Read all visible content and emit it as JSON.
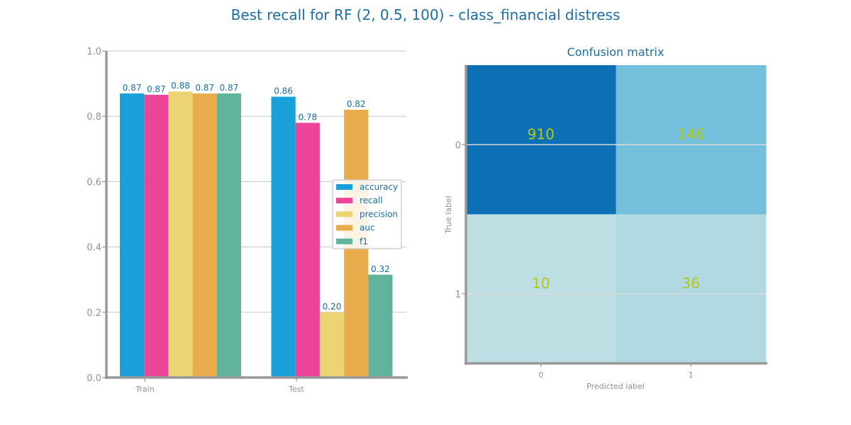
{
  "title": "Best recall for RF (2, 0.5, 100) - class_financial distress",
  "chart_data": [
    {
      "type": "bar",
      "categories": [
        "Train",
        "Test"
      ],
      "series": [
        {
          "name": "accuracy",
          "values": [
            0.87,
            0.86
          ],
          "color": "#1aa0d8"
        },
        {
          "name": "recall",
          "values": [
            0.866,
            0.78
          ],
          "color": "#ea4598"
        },
        {
          "name": "precision",
          "values": [
            0.876,
            0.2
          ],
          "color": "#ecd474"
        },
        {
          "name": "auc",
          "values": [
            0.87,
            0.82
          ],
          "color": "#e8ac4c"
        },
        {
          "name": "f1",
          "values": [
            0.87,
            0.315
          ],
          "color": "#62b39e"
        }
      ],
      "value_labels": [
        [
          "0.87",
          "0.87",
          "0.88",
          "0.87",
          "0.87"
        ],
        [
          "0.86",
          "0.78",
          "0.20",
          "0.82",
          "0.32"
        ]
      ],
      "ylim": [
        0,
        1
      ],
      "yticks": [
        "0.0",
        "0.2",
        "0.4",
        "0.6",
        "0.8",
        "1.0"
      ],
      "grid": true,
      "legend": "center-right"
    },
    {
      "type": "heatmap",
      "title": "Confusion matrix",
      "xlabel": "Predicted label",
      "ylabel": "True label",
      "x_ticks": [
        "0",
        "1"
      ],
      "y_ticks": [
        "0",
        "1"
      ],
      "matrix": [
        [
          910,
          146
        ],
        [
          10,
          36
        ]
      ],
      "cell_colors": [
        [
          "#0e70b4",
          "#74c0dc"
        ],
        [
          "#bddfe3",
          "#b0d9e1"
        ]
      ]
    }
  ]
}
